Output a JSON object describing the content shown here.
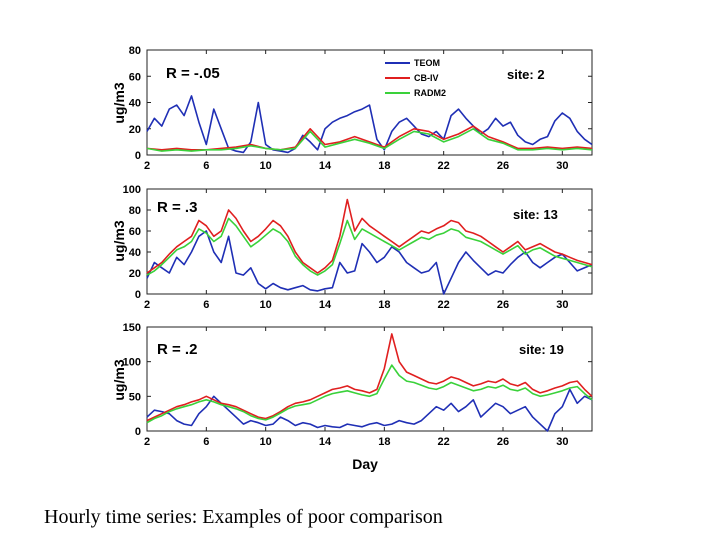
{
  "caption": "Hourly time series: Examples of poor comparison",
  "colors": {
    "TEOM": "#1f2fb5",
    "CB-IV": "#e01f1f",
    "RADM2": "#3ad13a"
  },
  "chart_data": [
    {
      "type": "line",
      "ylabel": "ug/m3",
      "xlabel": "",
      "annotation": "R = -.05",
      "site_label": "site: 2",
      "legend": [
        "TEOM",
        "CB-IV",
        "RADM2"
      ],
      "legend_position": "top-right",
      "xlim": [
        2,
        32
      ],
      "ylim": [
        0,
        80
      ],
      "xticks": [
        2,
        6,
        10,
        14,
        18,
        22,
        26,
        30
      ],
      "yticks": [
        0,
        20,
        40,
        60,
        80
      ],
      "series": [
        {
          "name": "TEOM",
          "x": [
            2,
            2.5,
            3,
            3.5,
            4,
            4.5,
            5,
            5.5,
            6,
            6.5,
            7,
            7.5,
            8,
            8.5,
            9,
            9.5,
            10,
            10.5,
            11,
            11.5,
            12,
            12.5,
            13,
            13.5,
            14,
            14.5,
            15,
            15.5,
            16,
            16.5,
            17,
            17.5,
            18,
            18.5,
            19,
            19.5,
            20,
            20.5,
            21,
            21.5,
            22,
            22.5,
            23,
            23.5,
            24,
            24.5,
            25,
            25.5,
            26,
            26.5,
            27,
            27.5,
            28,
            28.5,
            29,
            29.5,
            30,
            30.5,
            31,
            31.5,
            32
          ],
          "y": [
            18,
            28,
            22,
            35,
            38,
            30,
            45,
            25,
            8,
            35,
            20,
            5,
            3,
            2,
            10,
            40,
            8,
            4,
            3,
            2,
            5,
            15,
            10,
            4,
            20,
            25,
            28,
            30,
            33,
            35,
            38,
            12,
            4,
            18,
            25,
            28,
            22,
            16,
            14,
            18,
            12,
            30,
            35,
            28,
            22,
            16,
            20,
            28,
            22,
            25,
            15,
            10,
            8,
            12,
            14,
            26,
            32,
            28,
            18,
            12,
            8
          ]
        },
        {
          "name": "CB-IV",
          "x": [
            2,
            3,
            4,
            5,
            6,
            7,
            8,
            9,
            10,
            11,
            12,
            13,
            14,
            15,
            16,
            17,
            18,
            19,
            20,
            21,
            22,
            23,
            24,
            25,
            26,
            27,
            28,
            29,
            30,
            31,
            32
          ],
          "y": [
            5,
            4,
            5,
            4,
            4,
            5,
            6,
            8,
            5,
            4,
            6,
            20,
            8,
            10,
            14,
            10,
            6,
            14,
            20,
            18,
            12,
            16,
            22,
            14,
            10,
            5,
            5,
            6,
            5,
            6,
            5
          ]
        },
        {
          "name": "RADM2",
          "x": [
            2,
            3,
            4,
            5,
            6,
            7,
            8,
            9,
            10,
            11,
            12,
            13,
            14,
            15,
            16,
            17,
            18,
            19,
            20,
            21,
            22,
            23,
            24,
            25,
            26,
            27,
            28,
            29,
            30,
            31,
            32
          ],
          "y": [
            5,
            3,
            4,
            3,
            4,
            4,
            5,
            7,
            5,
            4,
            5,
            18,
            6,
            9,
            12,
            9,
            5,
            12,
            18,
            16,
            10,
            14,
            20,
            12,
            9,
            4,
            4,
            5,
            4,
            5,
            4
          ]
        }
      ]
    },
    {
      "type": "line",
      "ylabel": "ug/m3",
      "xlabel": "",
      "annotation": "R = .3",
      "site_label": "site: 13",
      "xlim": [
        2,
        32
      ],
      "ylim": [
        0,
        100
      ],
      "xticks": [
        2,
        6,
        10,
        14,
        18,
        22,
        26,
        30
      ],
      "yticks": [
        0,
        20,
        40,
        60,
        80,
        100
      ],
      "series": [
        {
          "name": "TEOM",
          "x": [
            2,
            2.5,
            3,
            3.5,
            4,
            4.5,
            5,
            5.5,
            6,
            6.5,
            7,
            7.5,
            8,
            8.5,
            9,
            9.5,
            10,
            10.5,
            11,
            11.5,
            12,
            12.5,
            13,
            13.5,
            14,
            14.5,
            15,
            15.5,
            16,
            16.5,
            17,
            17.5,
            18,
            18.5,
            19,
            19.5,
            20,
            20.5,
            21,
            21.5,
            22,
            22.5,
            23,
            23.5,
            24,
            24.5,
            25,
            25.5,
            26,
            26.5,
            27,
            27.5,
            28,
            28.5,
            29,
            29.5,
            30,
            30.5,
            31,
            31.5,
            32
          ],
          "y": [
            15,
            30,
            25,
            20,
            35,
            28,
            40,
            55,
            60,
            40,
            30,
            55,
            20,
            18,
            25,
            10,
            5,
            10,
            6,
            4,
            6,
            8,
            4,
            3,
            5,
            6,
            30,
            20,
            22,
            48,
            40,
            30,
            35,
            45,
            40,
            30,
            25,
            20,
            22,
            30,
            0,
            15,
            30,
            40,
            32,
            25,
            18,
            22,
            20,
            28,
            35,
            40,
            30,
            25,
            30,
            35,
            38,
            30,
            22,
            25,
            28
          ]
        },
        {
          "name": "CB-IV",
          "x": [
            2,
            2.5,
            3,
            3.5,
            4,
            4.5,
            5,
            5.5,
            6,
            6.5,
            7,
            7.5,
            8,
            8.5,
            9,
            9.5,
            10,
            10.5,
            11,
            11.5,
            12,
            12.5,
            13,
            13.5,
            14,
            14.5,
            15,
            15.5,
            16,
            16.5,
            17,
            17.5,
            18,
            18.5,
            19,
            19.5,
            20,
            20.5,
            21,
            21.5,
            22,
            22.5,
            23,
            23.5,
            24,
            24.5,
            25,
            25.5,
            26,
            26.5,
            27,
            27.5,
            28,
            28.5,
            29,
            29.5,
            30,
            30.5,
            31,
            31.5,
            32
          ],
          "y": [
            20,
            25,
            30,
            38,
            45,
            50,
            55,
            70,
            65,
            55,
            60,
            80,
            72,
            60,
            50,
            55,
            62,
            70,
            65,
            55,
            40,
            30,
            25,
            20,
            25,
            32,
            55,
            90,
            60,
            72,
            65,
            60,
            55,
            50,
            45,
            50,
            55,
            60,
            58,
            62,
            65,
            70,
            68,
            60,
            58,
            55,
            50,
            45,
            40,
            45,
            50,
            42,
            45,
            48,
            44,
            40,
            38,
            35,
            32,
            30,
            28
          ]
        },
        {
          "name": "RADM2",
          "x": [
            2,
            2.5,
            3,
            3.5,
            4,
            4.5,
            5,
            5.5,
            6,
            6.5,
            7,
            7.5,
            8,
            8.5,
            9,
            9.5,
            10,
            10.5,
            11,
            11.5,
            12,
            12.5,
            13,
            13.5,
            14,
            14.5,
            15,
            15.5,
            16,
            16.5,
            17,
            17.5,
            18,
            18.5,
            19,
            19.5,
            20,
            20.5,
            21,
            21.5,
            22,
            22.5,
            23,
            23.5,
            24,
            24.5,
            25,
            25.5,
            26,
            26.5,
            27,
            27.5,
            28,
            28.5,
            29,
            29.5,
            30,
            30.5,
            31,
            31.5,
            32
          ],
          "y": [
            18,
            22,
            28,
            35,
            42,
            45,
            50,
            62,
            58,
            50,
            55,
            72,
            65,
            55,
            45,
            50,
            56,
            62,
            58,
            50,
            36,
            28,
            22,
            18,
            22,
            28,
            48,
            70,
            52,
            62,
            58,
            54,
            50,
            46,
            42,
            46,
            50,
            54,
            52,
            56,
            58,
            62,
            60,
            54,
            52,
            50,
            46,
            42,
            38,
            42,
            46,
            38,
            42,
            44,
            40,
            36,
            34,
            32,
            30,
            28,
            26
          ]
        }
      ]
    },
    {
      "type": "line",
      "ylabel": "ug/m3",
      "xlabel": "Day",
      "annotation": "R = .2",
      "site_label": "site: 19",
      "xlim": [
        2,
        32
      ],
      "ylim": [
        0,
        150
      ],
      "xticks": [
        2,
        6,
        10,
        14,
        18,
        22,
        26,
        30
      ],
      "yticks": [
        0,
        50,
        100,
        150
      ],
      "series": [
        {
          "name": "TEOM",
          "x": [
            2,
            2.5,
            3,
            3.5,
            4,
            4.5,
            5,
            5.5,
            6,
            6.5,
            7,
            7.5,
            8,
            8.5,
            9,
            9.5,
            10,
            10.5,
            11,
            11.5,
            12,
            12.5,
            13,
            13.5,
            14,
            14.5,
            15,
            15.5,
            16,
            16.5,
            17,
            17.5,
            18,
            18.5,
            19,
            19.5,
            20,
            20.5,
            21,
            21.5,
            22,
            22.5,
            23,
            23.5,
            24,
            24.5,
            25,
            25.5,
            26,
            26.5,
            27,
            27.5,
            28,
            28.5,
            29,
            29.5,
            30,
            30.5,
            31,
            31.5,
            32
          ],
          "y": [
            20,
            30,
            28,
            25,
            15,
            10,
            8,
            25,
            35,
            50,
            40,
            30,
            20,
            10,
            15,
            12,
            8,
            10,
            20,
            15,
            8,
            12,
            10,
            5,
            8,
            6,
            5,
            10,
            8,
            6,
            10,
            12,
            8,
            10,
            15,
            12,
            10,
            15,
            25,
            35,
            30,
            40,
            28,
            35,
            45,
            20,
            30,
            40,
            35,
            25,
            30,
            35,
            20,
            10,
            0,
            25,
            35,
            60,
            40,
            50,
            45
          ]
        },
        {
          "name": "CB-IV",
          "x": [
            2,
            2.5,
            3,
            3.5,
            4,
            4.5,
            5,
            5.5,
            6,
            6.5,
            7,
            7.5,
            8,
            8.5,
            9,
            9.5,
            10,
            10.5,
            11,
            11.5,
            12,
            12.5,
            13,
            13.5,
            14,
            14.5,
            15,
            15.5,
            16,
            16.5,
            17,
            17.5,
            18,
            18.5,
            19,
            19.5,
            20,
            20.5,
            21,
            21.5,
            22,
            22.5,
            23,
            23.5,
            24,
            24.5,
            25,
            25.5,
            26,
            26.5,
            27,
            27.5,
            28,
            28.5,
            29,
            29.5,
            30,
            30.5,
            31,
            31.5,
            32
          ],
          "y": [
            15,
            20,
            25,
            30,
            35,
            38,
            42,
            45,
            50,
            45,
            40,
            38,
            35,
            30,
            25,
            20,
            18,
            22,
            28,
            35,
            40,
            42,
            45,
            50,
            55,
            60,
            62,
            65,
            60,
            58,
            55,
            60,
            90,
            140,
            100,
            85,
            80,
            75,
            70,
            68,
            72,
            78,
            75,
            70,
            65,
            68,
            72,
            70,
            75,
            68,
            65,
            70,
            60,
            55,
            58,
            62,
            65,
            70,
            72,
            60,
            50
          ]
        },
        {
          "name": "RADM2",
          "x": [
            2,
            2.5,
            3,
            3.5,
            4,
            4.5,
            5,
            5.5,
            6,
            6.5,
            7,
            7.5,
            8,
            8.5,
            9,
            9.5,
            10,
            10.5,
            11,
            11.5,
            12,
            12.5,
            13,
            13.5,
            14,
            14.5,
            15,
            15.5,
            16,
            16.5,
            17,
            17.5,
            18,
            18.5,
            19,
            19.5,
            20,
            20.5,
            21,
            21.5,
            22,
            22.5,
            23,
            23.5,
            24,
            24.5,
            25,
            25.5,
            26,
            26.5,
            27,
            27.5,
            28,
            28.5,
            29,
            29.5,
            30,
            30.5,
            31,
            31.5,
            32
          ],
          "y": [
            12,
            18,
            22,
            28,
            32,
            35,
            38,
            42,
            45,
            42,
            38,
            35,
            32,
            28,
            22,
            18,
            16,
            20,
            26,
            32,
            36,
            38,
            40,
            45,
            50,
            54,
            56,
            58,
            55,
            52,
            50,
            54,
            75,
            95,
            80,
            72,
            70,
            66,
            62,
            60,
            64,
            70,
            66,
            62,
            58,
            60,
            64,
            62,
            66,
            60,
            58,
            62,
            54,
            50,
            52,
            55,
            58,
            62,
            64,
            54,
            45
          ]
        }
      ]
    }
  ]
}
